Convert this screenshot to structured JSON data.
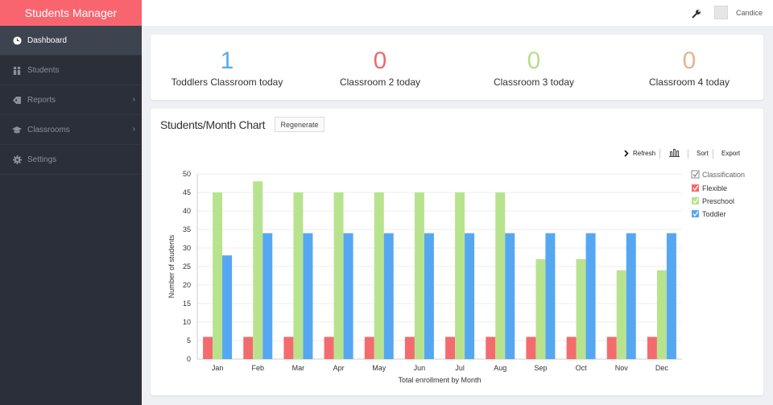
{
  "app": {
    "brand": "Students Manager"
  },
  "sidebar": {
    "items": [
      {
        "label": "Dashboard"
      },
      {
        "label": "Students"
      },
      {
        "label": "Reports"
      },
      {
        "label": "Classrooms"
      },
      {
        "label": "Settings"
      }
    ]
  },
  "user": {
    "name": "Candice"
  },
  "stats": [
    {
      "value": "1",
      "label": "Toddlers Classroom today",
      "color": "#5aa9ec"
    },
    {
      "value": "0",
      "label": "Classroom 2 today",
      "color": "#f06a6a"
    },
    {
      "value": "0",
      "label": "Classroom 3 today",
      "color": "#b6df8c"
    },
    {
      "value": "0",
      "label": "Classroom 4 today",
      "color": "#e6b48f"
    }
  ],
  "chart_card": {
    "title": "Students/Month Chart",
    "regenerate_label": "Regenerate",
    "toolbar": {
      "refresh": "Refresh",
      "sort": "Sort",
      "export": "Export"
    }
  },
  "chart_data": {
    "type": "bar",
    "categories": [
      "Jan",
      "Feb",
      "Mar",
      "Apr",
      "May",
      "Jun",
      "Jul",
      "Aug",
      "Sep",
      "Oct",
      "Nov",
      "Dec"
    ],
    "series": [
      {
        "name": "Flexible",
        "color": "#f46b6e",
        "values": [
          6,
          6,
          6,
          6,
          6,
          6,
          6,
          6,
          6,
          6,
          6,
          6
        ]
      },
      {
        "name": "Preschool",
        "color": "#b8e38e",
        "values": [
          45,
          48,
          45,
          45,
          45,
          45,
          45,
          45,
          27,
          27,
          24,
          24
        ]
      },
      {
        "name": "Toddler",
        "color": "#56a7f2",
        "values": [
          28,
          34,
          34,
          34,
          34,
          34,
          34,
          34,
          34,
          34,
          34,
          34
        ]
      }
    ],
    "legend_title": "Classification",
    "xlabel": "Total enrollment by Month",
    "ylabel": "Number of students",
    "ylim": [
      0,
      50
    ],
    "yticks": [
      0,
      5,
      10,
      15,
      20,
      25,
      30,
      35,
      40,
      45,
      50
    ],
    "grid": true,
    "legend_position": "right"
  }
}
